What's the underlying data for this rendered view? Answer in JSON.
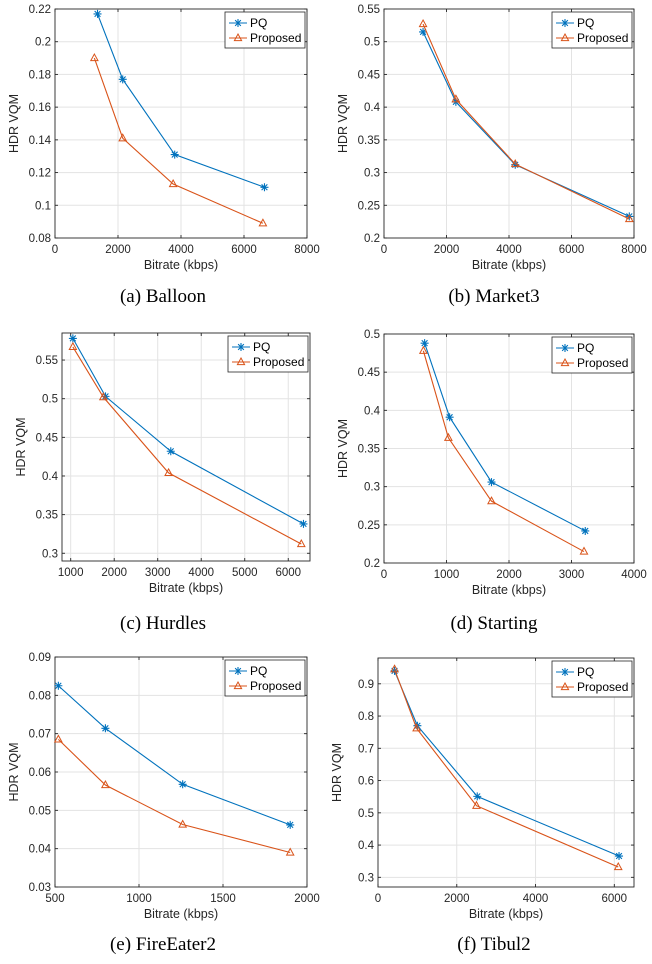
{
  "chart_data": [
    {
      "type": "line",
      "caption": "(a) Balloon",
      "xlabel": "Bitrate (kbps)",
      "ylabel": "HDR VQM",
      "xlim": [
        0,
        8000
      ],
      "ylim": [
        0.08,
        0.22
      ],
      "xticks": [
        0,
        2000,
        4000,
        6000,
        8000
      ],
      "xtick_labels": [
        "0",
        "2000",
        "4000",
        "6000",
        "8000"
      ],
      "yticks": [
        0.08,
        0.1,
        0.12,
        0.14,
        0.16,
        0.18,
        0.2,
        0.22
      ],
      "ytick_labels": [
        "0.08",
        "0.1",
        "0.12",
        "0.14",
        "0.16",
        "0.18",
        "0.2",
        "0.22"
      ],
      "grid": true,
      "legend_position": "top-right",
      "series": [
        {
          "name": "PQ",
          "marker": "star",
          "color": "#0072BD",
          "x": [
            1350,
            2150,
            3800,
            6650
          ],
          "y": [
            0.217,
            0.177,
            0.131,
            0.111
          ]
        },
        {
          "name": "Proposed",
          "marker": "triangle",
          "color": "#D95319",
          "x": [
            1250,
            2150,
            3750,
            6600
          ],
          "y": [
            0.19,
            0.141,
            0.113,
            0.089
          ]
        }
      ]
    },
    {
      "type": "line",
      "caption": "(b) Market3",
      "xlabel": "Bitrate (kbps)",
      "ylabel": "HDR VQM",
      "xlim": [
        0,
        8000
      ],
      "ylim": [
        0.2,
        0.55
      ],
      "xticks": [
        0,
        2000,
        4000,
        6000,
        8000
      ],
      "xtick_labels": [
        "0",
        "2000",
        "4000",
        "6000",
        "8000"
      ],
      "yticks": [
        0.2,
        0.25,
        0.3,
        0.35,
        0.4,
        0.45,
        0.5,
        0.55
      ],
      "ytick_labels": [
        "0.2",
        "0.25",
        "0.3",
        "0.35",
        "0.4",
        "0.45",
        "0.5",
        "0.55"
      ],
      "grid": true,
      "legend_position": "top-right",
      "series": [
        {
          "name": "PQ",
          "marker": "star",
          "color": "#0072BD",
          "x": [
            1250,
            2300,
            4200,
            7850
          ],
          "y": [
            0.515,
            0.408,
            0.312,
            0.233
          ]
        },
        {
          "name": "Proposed",
          "marker": "triangle",
          "color": "#D95319",
          "x": [
            1250,
            2300,
            4200,
            7850
          ],
          "y": [
            0.527,
            0.412,
            0.313,
            0.229
          ]
        }
      ]
    },
    {
      "type": "line",
      "caption": "(c) Hurdles",
      "xlabel": "Bitrate (kbps)",
      "ylabel": "HDR VQM",
      "xlim": [
        800,
        6500
      ],
      "ylim": [
        0.29,
        0.585
      ],
      "xticks": [
        1000,
        2000,
        3000,
        4000,
        5000,
        6000
      ],
      "xtick_labels": [
        "1000",
        "2000",
        "3000",
        "4000",
        "5000",
        "6000"
      ],
      "yticks": [
        0.3,
        0.35,
        0.4,
        0.45,
        0.5,
        0.55
      ],
      "ytick_labels": [
        "0.3",
        "0.35",
        "0.4",
        "0.45",
        "0.5",
        "0.55"
      ],
      "grid": true,
      "legend_position": "top-right",
      "series": [
        {
          "name": "PQ",
          "marker": "star",
          "color": "#0072BD",
          "x": [
            1050,
            1800,
            3300,
            6350
          ],
          "y": [
            0.578,
            0.503,
            0.432,
            0.338
          ]
        },
        {
          "name": "Proposed",
          "marker": "triangle",
          "color": "#D95319",
          "x": [
            1050,
            1750,
            3250,
            6300
          ],
          "y": [
            0.567,
            0.502,
            0.404,
            0.312
          ]
        }
      ]
    },
    {
      "type": "line",
      "caption": "(d) Starting",
      "xlabel": "Bitrate (kbps)",
      "ylabel": "HDR VQM",
      "xlim": [
        0,
        4000
      ],
      "ylim": [
        0.2,
        0.5
      ],
      "xticks": [
        0,
        1000,
        2000,
        3000,
        4000
      ],
      "xtick_labels": [
        "0",
        "1000",
        "2000",
        "3000",
        "4000"
      ],
      "yticks": [
        0.2,
        0.25,
        0.3,
        0.35,
        0.4,
        0.45,
        0.5
      ],
      "ytick_labels": [
        "0.2",
        "0.25",
        "0.3",
        "0.35",
        "0.4",
        "0.45",
        "0.5"
      ],
      "grid": true,
      "legend_position": "top-right",
      "series": [
        {
          "name": "PQ",
          "marker": "star",
          "color": "#0072BD",
          "x": [
            650,
            1050,
            1720,
            3220
          ],
          "y": [
            0.488,
            0.391,
            0.306,
            0.242
          ]
        },
        {
          "name": "Proposed",
          "marker": "triangle",
          "color": "#D95319",
          "x": [
            630,
            1030,
            1720,
            3200
          ],
          "y": [
            0.478,
            0.364,
            0.281,
            0.215
          ]
        }
      ]
    },
    {
      "type": "line",
      "caption": "(e) FireEater2",
      "xlabel": "Bitrate (kbps)",
      "ylabel": "HDR VQM",
      "xlim": [
        500,
        2000
      ],
      "ylim": [
        0.03,
        0.09
      ],
      "xticks": [
        500,
        1000,
        1500,
        2000
      ],
      "xtick_labels": [
        "500",
        "1000",
        "1500",
        "2000"
      ],
      "yticks": [
        0.03,
        0.04,
        0.05,
        0.06,
        0.07,
        0.08,
        0.09
      ],
      "ytick_labels": [
        "0.03",
        "0.04",
        "0.05",
        "0.06",
        "0.07",
        "0.08",
        "0.09"
      ],
      "grid": true,
      "legend_position": "top-right",
      "series": [
        {
          "name": "PQ",
          "marker": "star",
          "color": "#0072BD",
          "x": [
            520,
            800,
            1260,
            1900
          ],
          "y": [
            0.0825,
            0.0714,
            0.0568,
            0.0462
          ]
        },
        {
          "name": "Proposed",
          "marker": "triangle",
          "color": "#D95319",
          "x": [
            520,
            800,
            1260,
            1900
          ],
          "y": [
            0.0685,
            0.0566,
            0.0463,
            0.039
          ]
        }
      ]
    },
    {
      "type": "line",
      "caption": "(f) Tibul2",
      "xlabel": "Bitrate (kbps)",
      "ylabel": "HDR VQM",
      "xlim": [
        0,
        6500
      ],
      "ylim": [
        0.27,
        0.98
      ],
      "xticks": [
        0,
        2000,
        4000,
        6000
      ],
      "xtick_labels": [
        "0",
        "2000",
        "4000",
        "6000"
      ],
      "yticks": [
        0.3,
        0.4,
        0.5,
        0.6,
        0.7,
        0.8,
        0.9
      ],
      "ytick_labels": [
        "0.3",
        "0.4",
        "0.5",
        "0.6",
        "0.7",
        "0.8",
        "0.9"
      ],
      "grid": true,
      "legend_position": "top-right",
      "series": [
        {
          "name": "PQ",
          "marker": "star",
          "color": "#0072BD",
          "x": [
            420,
            1000,
            2520,
            6120
          ],
          "y": [
            0.94,
            0.77,
            0.551,
            0.366
          ]
        },
        {
          "name": "Proposed",
          "marker": "triangle",
          "color": "#D95319",
          "x": [
            420,
            980,
            2500,
            6100
          ],
          "y": [
            0.945,
            0.762,
            0.522,
            0.332
          ]
        }
      ]
    }
  ]
}
